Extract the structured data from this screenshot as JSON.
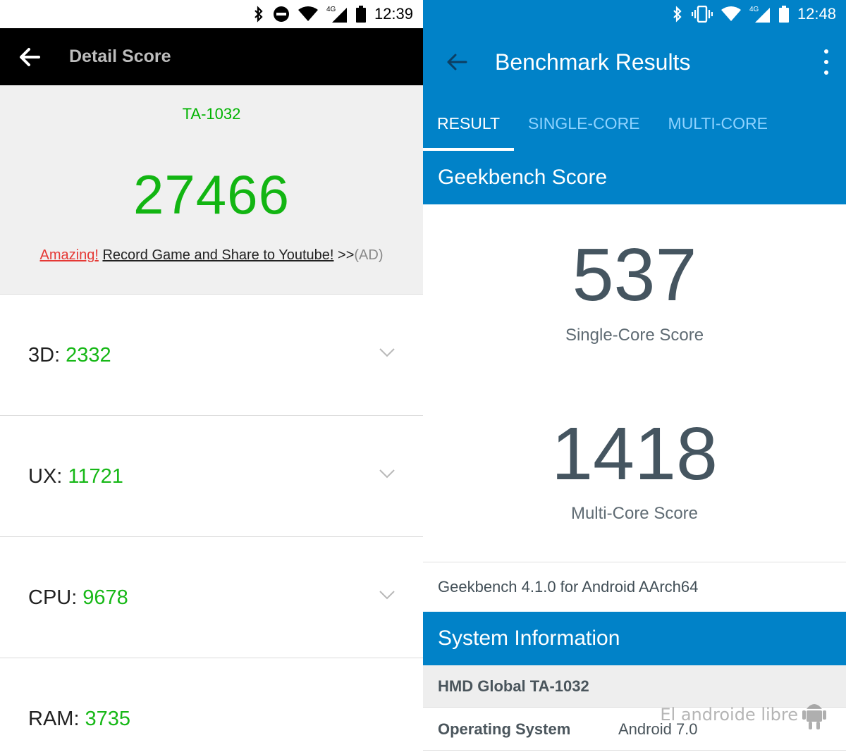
{
  "left": {
    "status_time": "12:39",
    "title": "Detail Score",
    "device": "TA-1032",
    "total_score": "27466",
    "ad": {
      "amazing": "Amazing!",
      "record": "Record Game and Share to Youtube!",
      "arrows": ">>",
      "ad_tag": "(AD)"
    },
    "rows": [
      {
        "label": "3D:",
        "value": "2332"
      },
      {
        "label": "UX:",
        "value": "11721"
      },
      {
        "label": "CPU:",
        "value": "9678"
      },
      {
        "label": "RAM:",
        "value": "3735"
      }
    ],
    "colors": {
      "score_green": "#12b512",
      "appbar": "#000000",
      "hero_bg": "#f0f0f0"
    }
  },
  "right": {
    "status_time": "12:48",
    "title": "Benchmark Results",
    "tabs": [
      {
        "label": "RESULT",
        "active": true
      },
      {
        "label": "SINGLE-CORE",
        "active": false
      },
      {
        "label": "MULTI-CORE",
        "active": false
      }
    ],
    "score_section": "Geekbench Score",
    "single_core": {
      "value": "537",
      "label": "Single-Core Score"
    },
    "multi_core": {
      "value": "1418",
      "label": "Multi-Core Score"
    },
    "version": "Geekbench 4.1.0 for Android AArch64",
    "system_section": "System Information",
    "system_rows": [
      {
        "key": "HMD Global TA-1032",
        "value": ""
      },
      {
        "key": "Operating System",
        "value": "Android 7.0"
      }
    ],
    "colors": {
      "primary": "#0182c8",
      "score_text": "#455560"
    }
  },
  "watermark": "El androide libre",
  "icons": [
    "bluetooth-icon",
    "do-not-disturb-icon",
    "wifi-icon",
    "signal-4g-icon",
    "battery-icon",
    "vibrate-icon",
    "back-arrow-icon",
    "overflow-menu-icon",
    "chevron-down-icon",
    "android-robot-icon"
  ]
}
